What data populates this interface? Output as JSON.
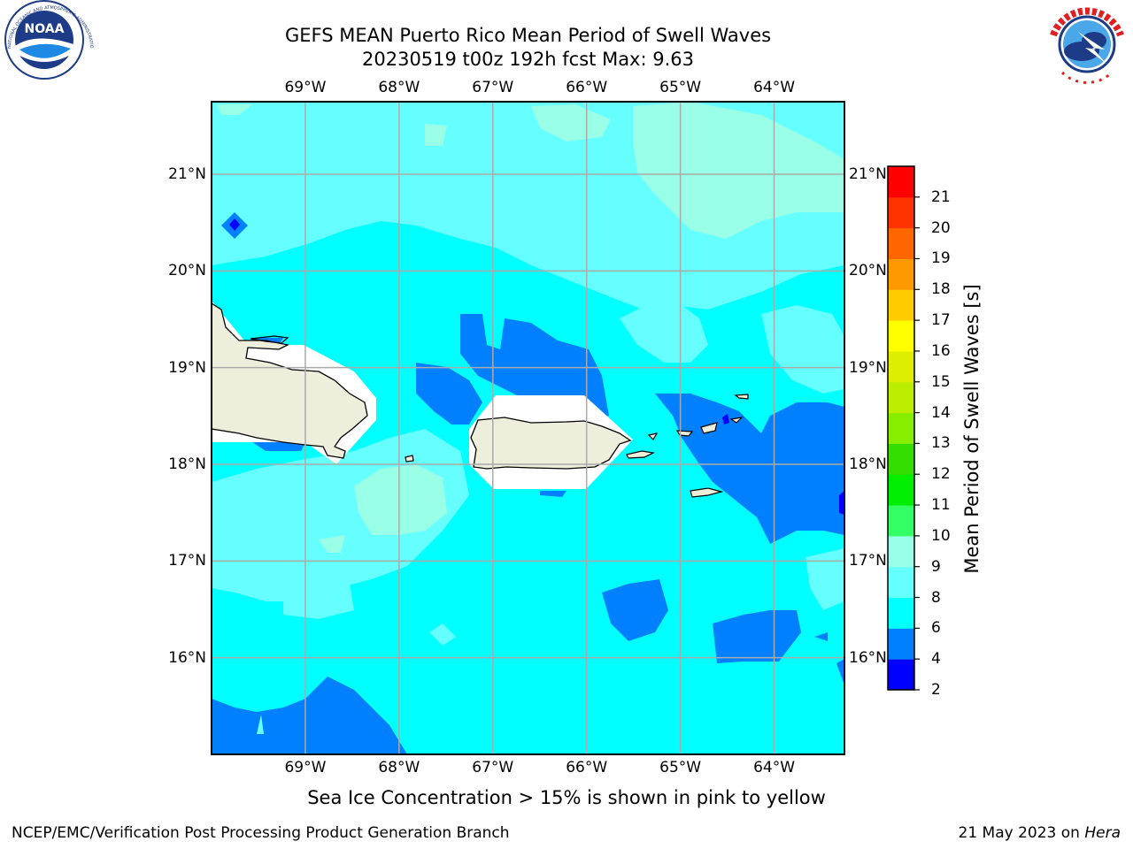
{
  "header": {
    "title_line1": "GEFS MEAN Puerto Rico Mean Period of Swell Waves",
    "title_line2": "20230519 t00z 192h fcst   Max: 9.63"
  },
  "logos": {
    "left": {
      "name": "NOAA",
      "text": "NOAA",
      "ring_text": "NATIONAL OCEANIC AND ATMOSPHERIC ADMINISTRATION · U.S. DEPARTMENT OF COMMERCE"
    },
    "right": {
      "name": "National Weather Service",
      "ring_text": "NATIONAL WEATHER SERVICE"
    }
  },
  "map": {
    "lon_labels": [
      "69°W",
      "68°W",
      "67°W",
      "66°W",
      "65°W",
      "64°W"
    ],
    "lat_labels": [
      "21°N",
      "20°N",
      "19°N",
      "18°N",
      "17°N",
      "16°N"
    ],
    "lon_values": [
      -69,
      -68,
      -67,
      -66,
      -65,
      -64
    ],
    "lat_values": [
      21,
      20,
      19,
      18,
      17,
      16
    ],
    "extent": {
      "lon_min": -70.0,
      "lon_max": -63.25,
      "lat_min": 15.0,
      "lat_max": 21.75
    },
    "land_color": "#eeeedc",
    "grid_color": "#aaaaaa"
  },
  "colorbar": {
    "label": "Mean Period of Swell Waves [s]",
    "ticks": [
      "2",
      "4",
      "6",
      "8",
      "9",
      "10",
      "11",
      "12",
      "13",
      "14",
      "15",
      "16",
      "17",
      "18",
      "19",
      "20",
      "21"
    ],
    "colors": [
      "#0000ff",
      "#0080ff",
      "#00ffff",
      "#66ffff",
      "#99ffe6",
      "#33ff66",
      "#00ee00",
      "#33dd00",
      "#88ee00",
      "#bbee00",
      "#ddee00",
      "#ffff00",
      "#ffcc00",
      "#ff9900",
      "#ff6600",
      "#ff3300",
      "#ff0000"
    ]
  },
  "caption": "Sea Ice Concentration > 15% is shown in pink to yellow",
  "footer": {
    "left": "NCEP/EMC/Verification Post Processing Product Generation Branch",
    "right_date": "21 May 2023 on ",
    "right_host": "Hera"
  }
}
